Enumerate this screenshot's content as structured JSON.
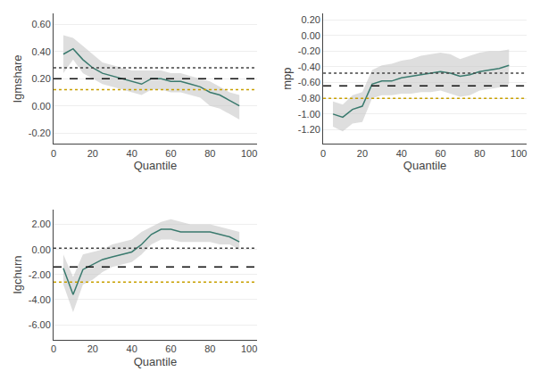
{
  "chart_data": [
    {
      "type": "line",
      "xlabel": "Quantile",
      "ylabel": "lgmshare",
      "x": [
        5,
        10,
        15,
        20,
        25,
        30,
        35,
        40,
        45,
        50,
        55,
        60,
        65,
        70,
        75,
        80,
        85,
        90,
        95
      ],
      "xlim": [
        0,
        104
      ],
      "xticks": [
        0,
        20,
        40,
        60,
        80,
        100
      ],
      "ylim": [
        -0.28,
        0.68
      ],
      "yticks": [
        {
          "value": -0.2,
          "label": "-0.20"
        },
        {
          "value": 0.0,
          "label": "0.00"
        },
        {
          "value": 0.2,
          "label": "0.20"
        },
        {
          "value": 0.4,
          "label": "0.40"
        },
        {
          "value": 0.6,
          "label": "0.60"
        }
      ],
      "grid": "y",
      "series": [
        {
          "type": "area",
          "color": "#c8c8c8",
          "upper": [
            0.52,
            0.5,
            0.44,
            0.38,
            0.32,
            0.3,
            0.28,
            0.26,
            0.26,
            0.26,
            0.26,
            0.24,
            0.24,
            0.22,
            0.2,
            0.18,
            0.14,
            0.1,
            0.08
          ],
          "lower": [
            0.24,
            0.34,
            0.24,
            0.2,
            0.16,
            0.14,
            0.12,
            0.1,
            0.08,
            0.12,
            0.12,
            0.1,
            0.1,
            0.08,
            0.06,
            0.0,
            -0.02,
            -0.06,
            -0.1
          ]
        },
        {
          "type": "line",
          "color": "#3a7a6e",
          "line_style": "solid",
          "values": [
            0.38,
            0.42,
            0.34,
            0.28,
            0.24,
            0.22,
            0.2,
            0.18,
            0.16,
            0.2,
            0.2,
            0.18,
            0.18,
            0.16,
            0.14,
            0.1,
            0.08,
            0.04,
            0.0
          ]
        },
        {
          "type": "hline",
          "color": "#111111",
          "line_style": "dashed",
          "value": 0.2
        },
        {
          "type": "hline",
          "color": "#444444",
          "line_style": "dotted",
          "value": 0.28
        },
        {
          "type": "hline",
          "color": "#c8a000",
          "line_style": "dotted",
          "value": 0.12
        }
      ]
    },
    {
      "type": "line",
      "xlabel": "Quantile",
      "ylabel": "mpp",
      "x": [
        5,
        10,
        15,
        20,
        25,
        30,
        35,
        40,
        45,
        50,
        55,
        60,
        65,
        70,
        75,
        80,
        85,
        90,
        95
      ],
      "xlim": [
        0,
        104
      ],
      "xticks": [
        0,
        20,
        40,
        60,
        80,
        100
      ],
      "ylim": [
        -1.38,
        0.28
      ],
      "yticks": [
        {
          "value": -1.2,
          "label": "-1.20"
        },
        {
          "value": -1.0,
          "label": "-1.00"
        },
        {
          "value": -0.8,
          "label": "-0.80"
        },
        {
          "value": -0.6,
          "label": "-0.60"
        },
        {
          "value": -0.4,
          "label": "-0.40"
        },
        {
          "value": -0.2,
          "label": "-0.20"
        },
        {
          "value": 0.0,
          "label": "0.00"
        },
        {
          "value": 0.2,
          "label": "0.20"
        }
      ],
      "grid": "y",
      "series": [
        {
          "type": "area",
          "color": "#c8c8c8",
          "upper": [
            -0.84,
            -0.88,
            -0.76,
            -0.72,
            -0.44,
            -0.38,
            -0.36,
            -0.32,
            -0.3,
            -0.26,
            -0.24,
            -0.22,
            -0.24,
            -0.3,
            -0.26,
            -0.22,
            -0.2,
            -0.2,
            -0.18
          ],
          "lower": [
            -1.16,
            -1.22,
            -1.12,
            -1.1,
            -0.8,
            -0.76,
            -0.76,
            -0.74,
            -0.74,
            -0.72,
            -0.72,
            -0.7,
            -0.74,
            -0.78,
            -0.76,
            -0.7,
            -0.68,
            -0.66,
            -0.62
          ]
        },
        {
          "type": "line",
          "color": "#3a7a6e",
          "line_style": "solid",
          "values": [
            -1.0,
            -1.04,
            -0.94,
            -0.9,
            -0.62,
            -0.58,
            -0.58,
            -0.54,
            -0.52,
            -0.5,
            -0.48,
            -0.46,
            -0.48,
            -0.52,
            -0.5,
            -0.46,
            -0.44,
            -0.42,
            -0.38
          ]
        },
        {
          "type": "hline",
          "color": "#111111",
          "line_style": "dashed",
          "value": -0.64
        },
        {
          "type": "hline",
          "color": "#444444",
          "line_style": "dotted",
          "value": -0.48
        },
        {
          "type": "hline",
          "color": "#c8a000",
          "line_style": "dotted",
          "value": -0.8
        }
      ]
    },
    {
      "type": "line",
      "xlabel": "Quantile",
      "ylabel": "lgchurn",
      "x": [
        5,
        10,
        15,
        20,
        25,
        30,
        35,
        40,
        45,
        50,
        55,
        60,
        65,
        70,
        75,
        80,
        85,
        90,
        95
      ],
      "xlim": [
        0,
        104
      ],
      "xticks": [
        0,
        20,
        40,
        60,
        80,
        100
      ],
      "ylim": [
        -7.2,
        3.2
      ],
      "yticks": [
        {
          "value": -6.0,
          "label": "-6.00"
        },
        {
          "value": -4.0,
          "label": "-4.00"
        },
        {
          "value": -2.0,
          "label": "-2.00"
        },
        {
          "value": 0.0,
          "label": "0.00"
        },
        {
          "value": 2.0,
          "label": "2.00"
        }
      ],
      "grid": "y",
      "series": [
        {
          "type": "area",
          "color": "#c8c8c8",
          "upper": [
            -0.4,
            -2.2,
            -0.4,
            -0.2,
            0.0,
            0.4,
            0.6,
            0.8,
            1.4,
            1.8,
            2.2,
            2.4,
            2.2,
            2.0,
            2.0,
            2.0,
            1.8,
            1.6,
            1.4
          ],
          "lower": [
            -2.8,
            -5.0,
            -2.8,
            -2.4,
            -1.8,
            -1.4,
            -1.2,
            -1.0,
            -0.4,
            0.4,
            0.8,
            0.8,
            0.6,
            0.6,
            0.6,
            0.6,
            0.4,
            0.4,
            0.0
          ]
        },
        {
          "type": "line",
          "color": "#3a7a6e",
          "line_style": "solid",
          "values": [
            -1.5,
            -3.6,
            -1.6,
            -1.2,
            -0.8,
            -0.6,
            -0.4,
            -0.2,
            0.4,
            1.2,
            1.6,
            1.6,
            1.4,
            1.4,
            1.4,
            1.4,
            1.2,
            1.0,
            0.6
          ]
        },
        {
          "type": "hline",
          "color": "#111111",
          "line_style": "dashed",
          "value": -1.4
        },
        {
          "type": "hline",
          "color": "#444444",
          "line_style": "dotted",
          "value": 0.1
        },
        {
          "type": "hline",
          "color": "#c8a000",
          "line_style": "dotted",
          "value": -2.6
        }
      ]
    }
  ]
}
